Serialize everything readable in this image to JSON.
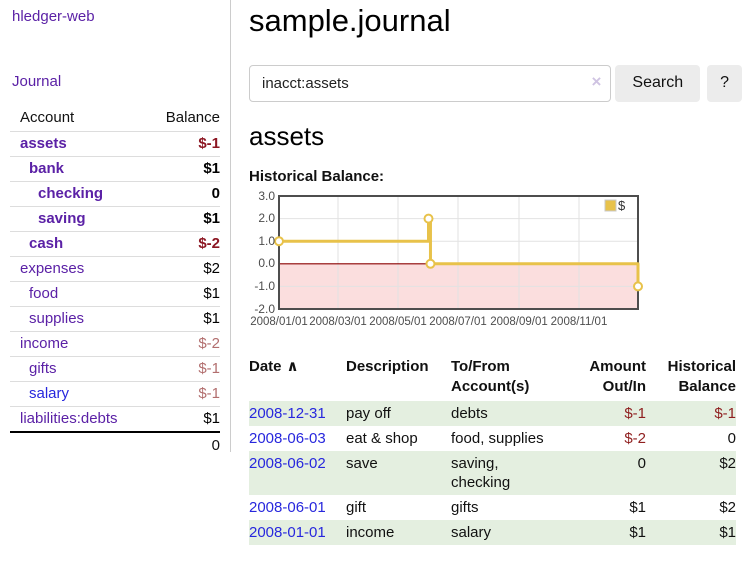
{
  "colors": {
    "purple_link": "#5b21a6",
    "blue_link": "#2727dd",
    "negative_strong": "#8c1622",
    "negative_soft": "#b26e6e",
    "table_negative": "#8f1f1f",
    "row_stripe_green": "#e4efe0",
    "button_gray": "#ececec",
    "chart_gold": "#e8c24a",
    "chart_negative_fill": "#fbdede",
    "chart_zero_line": "#8b0000"
  },
  "sidebar": {
    "brand": "hledger-web",
    "nav": [
      {
        "label": "Journal"
      }
    ],
    "accounts_table": {
      "headers": {
        "account": "Account",
        "balance": "Balance"
      },
      "rows": [
        {
          "account": "assets",
          "balance": "$-1",
          "level": 1,
          "bold": true,
          "balance_class": "neg-strong",
          "link_color": "purple"
        },
        {
          "account": "bank",
          "balance": "$1",
          "level": 2,
          "bold": true,
          "balance_class": "pos",
          "link_color": "purple"
        },
        {
          "account": "checking",
          "balance": "0",
          "level": 3,
          "bold": true,
          "balance_class": "pos",
          "link_color": "purple"
        },
        {
          "account": "saving",
          "balance": "$1",
          "level": 3,
          "bold": true,
          "balance_class": "pos",
          "link_color": "purple"
        },
        {
          "account": "cash",
          "balance": "$-2",
          "level": 2,
          "bold": true,
          "balance_class": "neg-strong",
          "link_color": "purple"
        },
        {
          "account": "expenses",
          "balance": "$2",
          "level": 1,
          "bold": false,
          "balance_class": "pos",
          "link_color": "purple"
        },
        {
          "account": "food",
          "balance": "$1",
          "level": 2,
          "bold": false,
          "balance_class": "pos",
          "link_color": "purple"
        },
        {
          "account": "supplies",
          "balance": "$1",
          "level": 2,
          "bold": false,
          "balance_class": "pos",
          "link_color": "purple"
        },
        {
          "account": "income",
          "balance": "$-2",
          "level": 1,
          "bold": false,
          "balance_class": "neg-soft",
          "link_color": "purple"
        },
        {
          "account": "gifts",
          "balance": "$-1",
          "level": 2,
          "bold": false,
          "balance_class": "neg-soft",
          "link_color": "purple"
        },
        {
          "account": "salary",
          "balance": "$-1",
          "level": 2,
          "bold": false,
          "balance_class": "neg-soft",
          "link_color": "blue"
        },
        {
          "account": "liabilities:debts",
          "balance": "$1",
          "level": 1,
          "bold": false,
          "balance_class": "pos",
          "link_color": "purple"
        }
      ],
      "total": "0"
    }
  },
  "header": {
    "title": "sample.journal",
    "search": {
      "value": "inacct:assets",
      "clear_icon": "×",
      "search_label": "Search",
      "help_label": "?"
    }
  },
  "register": {
    "account_heading": "assets",
    "chart_label": "Historical Balance:",
    "table": {
      "headers": {
        "date": "Date",
        "sort_icon": "∧",
        "description": "Description",
        "accounts": "To/From Account(s)",
        "amount": "Amount Out/In",
        "balance": "Historical Balance"
      },
      "rows": [
        {
          "date": "2008-12-31",
          "description": "pay off",
          "accounts": "debts",
          "amount": "$-1",
          "amount_negative": true,
          "balance": "$-1",
          "balance_negative": true,
          "shaded": true
        },
        {
          "date": "2008-06-03",
          "description": "eat & shop",
          "accounts": "food, supplies",
          "amount": "$-2",
          "amount_negative": true,
          "balance": "0",
          "balance_negative": false,
          "shaded": false
        },
        {
          "date": "2008-06-02",
          "description": "save",
          "accounts": "saving, checking",
          "amount": "0",
          "amount_negative": false,
          "balance": "$2",
          "balance_negative": false,
          "shaded": true
        },
        {
          "date": "2008-06-01",
          "description": "gift",
          "accounts": "gifts",
          "amount": "$1",
          "amount_negative": false,
          "balance": "$2",
          "balance_negative": false,
          "shaded": false
        },
        {
          "date": "2008-01-01",
          "description": "income",
          "accounts": "salary",
          "amount": "$1",
          "amount_negative": false,
          "balance": "$1",
          "balance_negative": false,
          "shaded": true
        }
      ]
    }
  },
  "chart_data": {
    "type": "line",
    "step": true,
    "title": "Historical Balance:",
    "series": [
      {
        "name": "$",
        "color": "#e8c24a",
        "points": [
          [
            "2008-01-01",
            1
          ],
          [
            "2008-06-01",
            2
          ],
          [
            "2008-06-03",
            0
          ],
          [
            "2008-12-31",
            -1
          ]
        ]
      }
    ],
    "x_range": [
      "2008-01-01",
      "2008-12-31"
    ],
    "y_range": [
      -2,
      3
    ],
    "x_ticks": [
      {
        "date": "2008-01-01",
        "label": "2008/01/01"
      },
      {
        "date": "2008-03-01",
        "label": "2008/03/01"
      },
      {
        "date": "2008-05-01",
        "label": "2008/05/01"
      },
      {
        "date": "2008-07-01",
        "label": "2008/07/01"
      },
      {
        "date": "2008-09-01",
        "label": "2008/09/01"
      },
      {
        "date": "2008-11-01",
        "label": "2008/11/01"
      }
    ],
    "y_ticks": [
      {
        "value": 3,
        "label": "3.0"
      },
      {
        "value": 2,
        "label": "2.0"
      },
      {
        "value": 1,
        "label": "1.0"
      },
      {
        "value": 0,
        "label": "0.0"
      },
      {
        "value": -1,
        "label": "-1.0"
      },
      {
        "value": -2,
        "label": "-2.0"
      }
    ],
    "grid": true,
    "legend_position": "top-right",
    "negative_region_color": "#fbdede",
    "zero_line_color": "#8b0000"
  }
}
